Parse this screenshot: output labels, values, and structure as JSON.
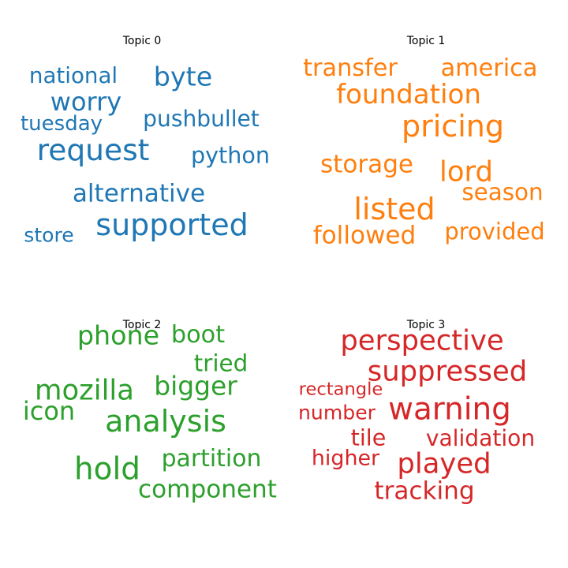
{
  "chart_data": [
    {
      "type": "wordcloud",
      "title": "Topic 0",
      "color": "#1f77b4",
      "words": [
        {
          "text": "national",
          "weight": 0.62
        },
        {
          "text": "byte",
          "weight": 0.75
        },
        {
          "text": "worry",
          "weight": 0.72
        },
        {
          "text": "tuesday",
          "weight": 0.58
        },
        {
          "text": "pushbullet",
          "weight": 0.63
        },
        {
          "text": "request",
          "weight": 0.85
        },
        {
          "text": "python",
          "weight": 0.64
        },
        {
          "text": "alternative",
          "weight": 0.7
        },
        {
          "text": "store",
          "weight": 0.56
        },
        {
          "text": "supported",
          "weight": 0.86
        }
      ]
    },
    {
      "type": "wordcloud",
      "title": "Topic 1",
      "color": "#ff7f0e",
      "words": [
        {
          "text": "transfer",
          "weight": 0.68
        },
        {
          "text": "america",
          "weight": 0.68
        },
        {
          "text": "foundation",
          "weight": 0.77
        },
        {
          "text": "pricing",
          "weight": 0.86
        },
        {
          "text": "storage",
          "weight": 0.7
        },
        {
          "text": "lord",
          "weight": 0.8
        },
        {
          "text": "season",
          "weight": 0.66
        },
        {
          "text": "listed",
          "weight": 0.86
        },
        {
          "text": "followed",
          "weight": 0.7
        },
        {
          "text": "provided",
          "weight": 0.65
        }
      ]
    },
    {
      "type": "wordcloud",
      "title": "Topic 2",
      "color": "#2ca02c",
      "words": [
        {
          "text": "phone",
          "weight": 0.75
        },
        {
          "text": "boot",
          "weight": 0.68
        },
        {
          "text": "tried",
          "weight": 0.66
        },
        {
          "text": "mozilla",
          "weight": 0.8
        },
        {
          "text": "bigger",
          "weight": 0.74
        },
        {
          "text": "icon",
          "weight": 0.72
        },
        {
          "text": "analysis",
          "weight": 0.86
        },
        {
          "text": "hold",
          "weight": 0.88
        },
        {
          "text": "partition",
          "weight": 0.67
        },
        {
          "text": "component",
          "weight": 0.7
        }
      ]
    },
    {
      "type": "wordcloud",
      "title": "Topic 3",
      "color": "#d62728",
      "words": [
        {
          "text": "perspective",
          "weight": 0.8
        },
        {
          "text": "suppressed",
          "weight": 0.8
        },
        {
          "text": "rectangle",
          "weight": 0.5
        },
        {
          "text": "warning",
          "weight": 0.88
        },
        {
          "text": "number",
          "weight": 0.56
        },
        {
          "text": "tile",
          "weight": 0.64
        },
        {
          "text": "validation",
          "weight": 0.63
        },
        {
          "text": "higher",
          "weight": 0.6
        },
        {
          "text": "played",
          "weight": 0.8
        },
        {
          "text": "tracking",
          "weight": 0.7
        }
      ]
    }
  ]
}
